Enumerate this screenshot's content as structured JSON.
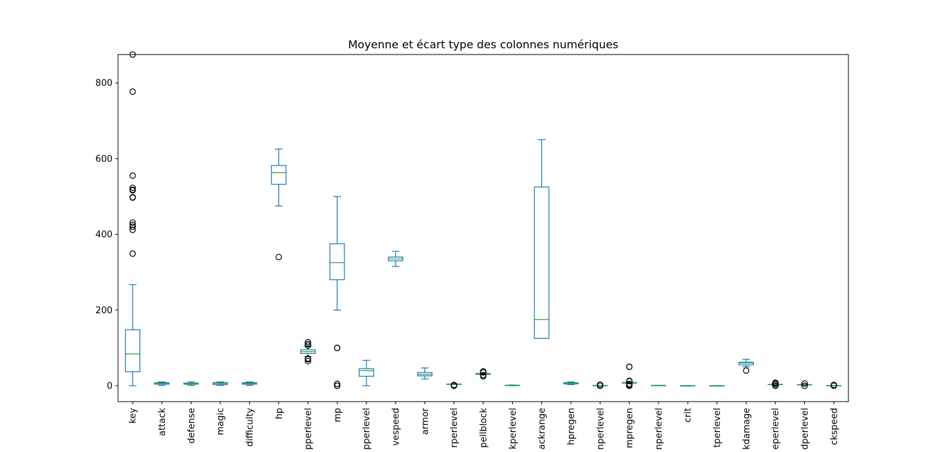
{
  "chart_data": {
    "type": "boxplot",
    "title": "Moyenne et écart type des colonnes numériques",
    "xlabel": "",
    "ylabel": "",
    "ylim": [
      -42,
      875
    ],
    "yticks": [
      0,
      200,
      400,
      600,
      800
    ],
    "grid": false,
    "colors": {
      "box": "#1f77b4",
      "median": "#2ca02c",
      "flier": "#000000"
    },
    "categories": [
      "key",
      "attack",
      "defense",
      "magic",
      "difficulty",
      "hp",
      "hpperlevel",
      "mp",
      "mpperlevel",
      "movespeed",
      "armor",
      "armorperlevel",
      "spellblock",
      "spellblockperlevel",
      "attackrange",
      "hpregen",
      "hpregenperlevel",
      "mpregen",
      "mpregenperlevel",
      "crit",
      "critperlevel",
      "attackdamage",
      "attackdamageperlevel",
      "attackspeedperlevel",
      "attackspeed"
    ],
    "tick_labels": [
      "key",
      "attack",
      "defense",
      "magic",
      "difficulty",
      "hp",
      "pperlevel",
      "mp",
      "pperlevel",
      "vespeed",
      "armor",
      "rperlevel",
      "pellblock",
      "kperlevel",
      "ackrange",
      "hpregen",
      "nperlevel",
      "mpregen",
      "nperlevel",
      "crit",
      "tperlevel",
      "kdamage",
      "eperlevel",
      "dperlevel",
      "ckspeed"
    ],
    "boxes": [
      {
        "whislo": 0,
        "q1": 37,
        "med": 84,
        "q3": 148,
        "whishi": 267,
        "fliers": [
          349,
          412,
          420,
          425,
          431,
          497,
          498,
          516,
          518,
          523,
          555,
          777,
          875
        ]
      },
      {
        "whislo": 1,
        "q1": 4,
        "med": 6,
        "q3": 8,
        "whishi": 10,
        "fliers": []
      },
      {
        "whislo": 1,
        "q1": 4,
        "med": 5,
        "q3": 7,
        "whishi": 10,
        "fliers": []
      },
      {
        "whislo": 1,
        "q1": 3,
        "med": 6,
        "q3": 8,
        "whishi": 10,
        "fliers": []
      },
      {
        "whislo": 1,
        "q1": 4,
        "med": 6,
        "q3": 8,
        "whishi": 10,
        "fliers": []
      },
      {
        "whislo": 475,
        "q1": 532,
        "med": 563,
        "q3": 582,
        "whishi": 625,
        "fliers": [
          340
        ]
      },
      {
        "whislo": 77,
        "q1": 85,
        "med": 90,
        "q3": 95,
        "whishi": 105,
        "fliers": [
          65,
          70,
          72,
          106,
          110,
          115
        ]
      },
      {
        "whislo": 200,
        "q1": 280,
        "med": 325,
        "q3": 375,
        "whishi": 500,
        "fliers": [
          0,
          0,
          5,
          100,
          100
        ]
      },
      {
        "whislo": 0,
        "q1": 25,
        "med": 40,
        "q3": 45,
        "whishi": 67,
        "fliers": []
      },
      {
        "whislo": 315,
        "q1": 330,
        "med": 335,
        "q3": 340,
        "whishi": 355,
        "fliers": []
      },
      {
        "whislo": 18,
        "q1": 26,
        "med": 30,
        "q3": 35,
        "whishi": 47,
        "fliers": []
      },
      {
        "whislo": 3,
        "q1": 3.5,
        "med": 4,
        "q3": 4.5,
        "whishi": 5,
        "fliers": [
          0,
          1,
          2
        ]
      },
      {
        "whislo": 30,
        "q1": 30,
        "med": 32,
        "q3": 32,
        "whishi": 33,
        "fliers": [
          25,
          28,
          35,
          38
        ]
      },
      {
        "whislo": 0,
        "q1": 0.5,
        "med": 1,
        "q3": 1.25,
        "whishi": 2,
        "fliers": []
      },
      {
        "whislo": 125,
        "q1": 125,
        "med": 175,
        "q3": 525,
        "whishi": 650,
        "fliers": []
      },
      {
        "whislo": 3,
        "q1": 5,
        "med": 7,
        "q3": 8,
        "whishi": 10,
        "fliers": []
      },
      {
        "whislo": 0.5,
        "q1": 0.55,
        "med": 0.6,
        "q3": 0.8,
        "whishi": 1,
        "fliers": [
          0,
          3
        ]
      },
      {
        "whislo": 6,
        "q1": 7,
        "med": 8,
        "q3": 8.5,
        "whishi": 10,
        "fliers": [
          0,
          0,
          2,
          5,
          12,
          13,
          50,
          50
        ]
      },
      {
        "whislo": 0,
        "q1": 0.5,
        "med": 0.8,
        "q3": 0.9,
        "whishi": 1,
        "fliers": []
      },
      {
        "whislo": 0,
        "q1": 0,
        "med": 0,
        "q3": 0,
        "whishi": 0,
        "fliers": []
      },
      {
        "whislo": 0,
        "q1": 0,
        "med": 0,
        "q3": 0,
        "whishi": 0,
        "fliers": []
      },
      {
        "whislo": 50,
        "q1": 55,
        "med": 60,
        "q3": 62,
        "whishi": 70,
        "fliers": [
          40
        ]
      },
      {
        "whislo": 2,
        "q1": 3,
        "med": 3.3,
        "q3": 3.6,
        "whishi": 5,
        "fliers": [
          0,
          1,
          5,
          7,
          8
        ]
      },
      {
        "whislo": 1,
        "q1": 2,
        "med": 2.5,
        "q3": 3,
        "whishi": 4,
        "fliers": [
          0,
          6
        ]
      },
      {
        "whislo": 0.6,
        "q1": 0.625,
        "med": 0.65,
        "q3": 0.68,
        "whishi": 0.69,
        "fliers": [
          0,
          1,
          2
        ]
      }
    ]
  }
}
